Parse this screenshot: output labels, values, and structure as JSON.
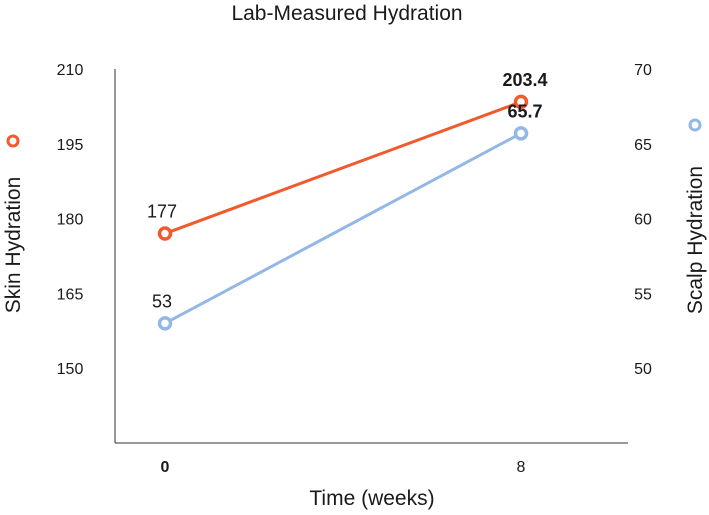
{
  "chart_data": {
    "type": "line",
    "title": "Lab-Measured Hydration",
    "xlabel": "Time (weeks)",
    "x": [
      0,
      8
    ],
    "x_tick_labels": [
      "0",
      "8"
    ],
    "x_bold_ticks": [
      "0"
    ],
    "ylabel_left": "Skin Hydration",
    "ylabel_right": "Scalp Hydration",
    "y_left_ticks": [
      "210",
      "195",
      "180",
      "165",
      "150"
    ],
    "y_left_lim": [
      135,
      210
    ],
    "y_right_ticks": [
      "70",
      "65",
      "60",
      "55",
      "50"
    ],
    "y_right_lim": [
      45,
      70
    ],
    "series": [
      {
        "name": "Skin Hydration",
        "axis": "left",
        "color": "#f05a2c",
        "values": [
          177,
          203.4
        ],
        "labels": [
          "177",
          "203.4"
        ]
      },
      {
        "name": "Scalp Hydration",
        "axis": "right",
        "color": "#94b8e6",
        "values": [
          53,
          65.7
        ],
        "labels": [
          "53",
          "65.7"
        ]
      }
    ],
    "grid": false
  }
}
